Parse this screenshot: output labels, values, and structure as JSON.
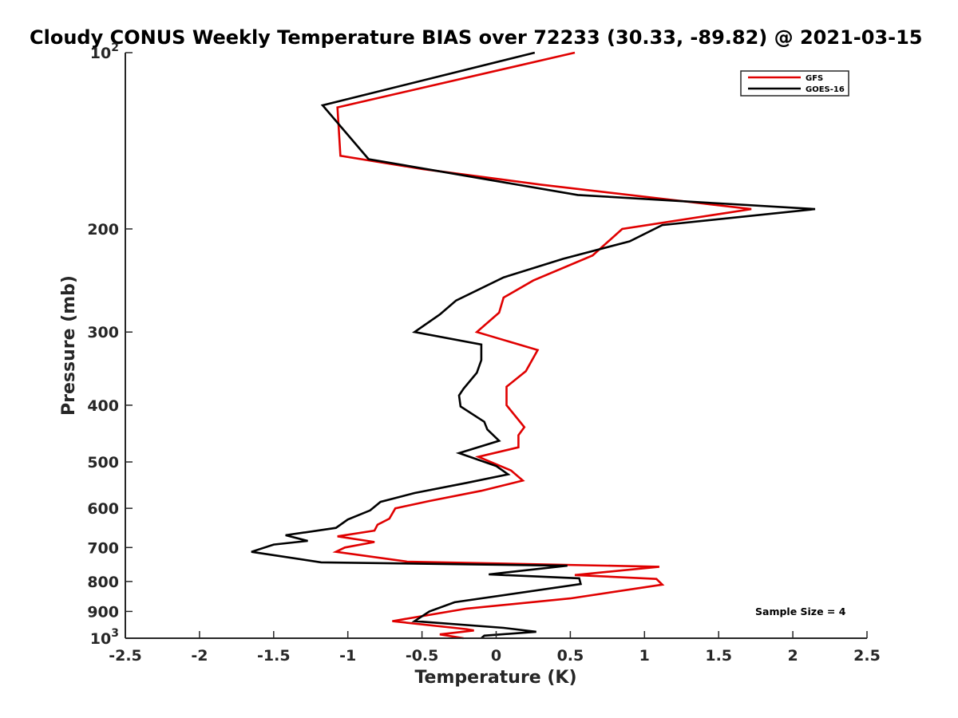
{
  "chart_data": {
    "type": "line",
    "title": "Cloudy CONUS Weekly Temperature BIAS over 72233 (30.33, -89.82) @ 2021-03-15",
    "xlabel": "Temperature (K)",
    "ylabel": "Pressure (mb)",
    "xlim": [
      -2.5,
      2.5
    ],
    "ylim": [
      100,
      1000
    ],
    "y_scale": "log",
    "y_reversed": true,
    "x_ticks": [
      {
        "value": -2.5,
        "label": "-2.5"
      },
      {
        "value": -2,
        "label": "-2"
      },
      {
        "value": -1.5,
        "label": "-1.5"
      },
      {
        "value": -1,
        "label": "-1"
      },
      {
        "value": -0.5,
        "label": "-0.5"
      },
      {
        "value": 0,
        "label": "0"
      },
      {
        "value": 0.5,
        "label": "0.5"
      },
      {
        "value": 1,
        "label": "1"
      },
      {
        "value": 1.5,
        "label": "1.5"
      },
      {
        "value": 2,
        "label": "2"
      },
      {
        "value": 2.5,
        "label": "2.5"
      }
    ],
    "y_ticks": [
      {
        "value": 100,
        "base": "10",
        "exp": "2"
      },
      {
        "value": 200,
        "label": "200"
      },
      {
        "value": 300,
        "label": "300"
      },
      {
        "value": 400,
        "label": "400"
      },
      {
        "value": 500,
        "label": "500"
      },
      {
        "value": 600,
        "label": "600"
      },
      {
        "value": 700,
        "label": "700"
      },
      {
        "value": 800,
        "label": "800"
      },
      {
        "value": 900,
        "label": "900"
      },
      {
        "value": 1000,
        "base": "10",
        "exp": "3"
      }
    ],
    "legend_position": "top-right",
    "annotation": "Sample Size = 4",
    "series": [
      {
        "name": "GFS",
        "color": "#e00000",
        "points": [
          [
            0.53,
            100
          ],
          [
            -1.07,
            124
          ],
          [
            -1.05,
            150
          ],
          [
            -0.5,
            158
          ],
          [
            0.3,
            168
          ],
          [
            1.72,
            185
          ],
          [
            0.85,
            200
          ],
          [
            0.65,
            222
          ],
          [
            0.25,
            245
          ],
          [
            0.05,
            262
          ],
          [
            0.02,
            278
          ],
          [
            -0.13,
            300
          ],
          [
            0.28,
            322
          ],
          [
            0.2,
            350
          ],
          [
            0.07,
            372
          ],
          [
            0.07,
            400
          ],
          [
            0.19,
            436
          ],
          [
            0.15,
            450
          ],
          [
            0.15,
            472
          ],
          [
            -0.12,
            490
          ],
          [
            0.1,
            517
          ],
          [
            0.18,
            538
          ],
          [
            -0.1,
            560
          ],
          [
            -0.45,
            583
          ],
          [
            -0.68,
            600
          ],
          [
            -0.72,
            625
          ],
          [
            -0.8,
            640
          ],
          [
            -0.82,
            655
          ],
          [
            -1.07,
            670
          ],
          [
            -0.82,
            685
          ],
          [
            -1.02,
            700
          ],
          [
            -1.08,
            712
          ],
          [
            -0.6,
            740
          ],
          [
            1.1,
            755
          ],
          [
            0.53,
            780
          ],
          [
            1.08,
            792
          ],
          [
            1.12,
            810
          ],
          [
            0.5,
            855
          ],
          [
            -0.2,
            890
          ],
          [
            -0.7,
            935
          ],
          [
            -0.2,
            965
          ],
          [
            -0.15,
            970
          ],
          [
            -0.38,
            985
          ],
          [
            -0.22,
            1000
          ]
        ]
      },
      {
        "name": "GOES-16",
        "color": "#000000",
        "points": [
          [
            0.26,
            100
          ],
          [
            -1.17,
            123
          ],
          [
            -0.86,
            152
          ],
          [
            0.55,
            175
          ],
          [
            2.15,
            185
          ],
          [
            1.12,
            197
          ],
          [
            0.9,
            210
          ],
          [
            0.45,
            225
          ],
          [
            0.05,
            242
          ],
          [
            -0.27,
            265
          ],
          [
            -0.38,
            280
          ],
          [
            -0.55,
            300
          ],
          [
            -0.1,
            315
          ],
          [
            -0.1,
            335
          ],
          [
            -0.13,
            352
          ],
          [
            -0.22,
            375
          ],
          [
            -0.25,
            385
          ],
          [
            -0.24,
            402
          ],
          [
            -0.08,
            427
          ],
          [
            -0.06,
            440
          ],
          [
            0.02,
            460
          ],
          [
            -0.25,
            483
          ],
          [
            0.0,
            508
          ],
          [
            0.08,
            525
          ],
          [
            -0.2,
            543
          ],
          [
            -0.55,
            565
          ],
          [
            -0.78,
            585
          ],
          [
            -0.85,
            605
          ],
          [
            -1.0,
            627
          ],
          [
            -1.08,
            648
          ],
          [
            -1.42,
            667
          ],
          [
            -1.27,
            682
          ],
          [
            -1.5,
            692
          ],
          [
            -1.65,
            712
          ],
          [
            -1.18,
            742
          ],
          [
            0.48,
            752
          ],
          [
            -0.05,
            778
          ],
          [
            0.56,
            790
          ],
          [
            0.57,
            808
          ],
          [
            -0.28,
            868
          ],
          [
            -0.45,
            900
          ],
          [
            -0.55,
            935
          ],
          [
            0.05,
            960
          ],
          [
            0.27,
            975
          ],
          [
            -0.08,
            990
          ],
          [
            -0.1,
            1000
          ]
        ]
      }
    ]
  }
}
